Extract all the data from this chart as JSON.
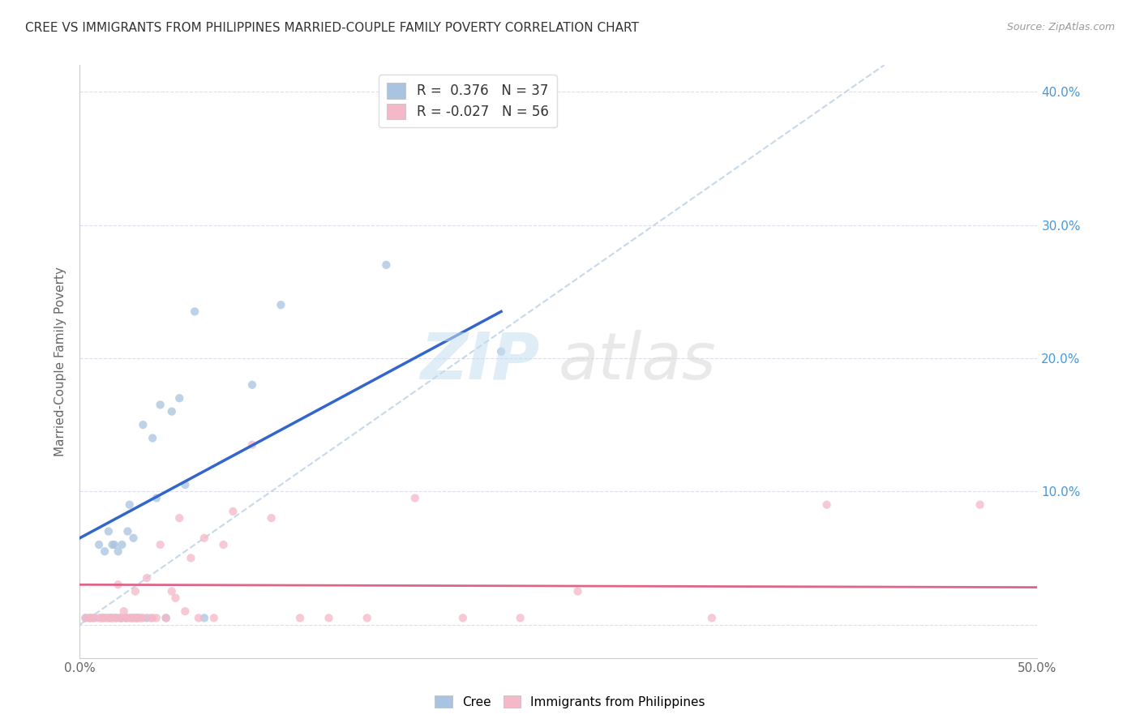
{
  "title": "CREE VS IMMIGRANTS FROM PHILIPPINES MARRIED-COUPLE FAMILY POVERTY CORRELATION CHART",
  "source": "Source: ZipAtlas.com",
  "ylabel": "Married-Couple Family Poverty",
  "xlim": [
    0.0,
    0.5
  ],
  "ylim": [
    -0.025,
    0.42
  ],
  "cree_color": "#a8c4e0",
  "philippines_color": "#f4b8c8",
  "cree_line_color": "#3366cc",
  "philippines_line_color": "#dd6688",
  "diagonal_color": "#c0d4e8",
  "watermark_zip": "ZIP",
  "watermark_atlas": "atlas",
  "cree_x": [
    0.003,
    0.005,
    0.007,
    0.01,
    0.012,
    0.013,
    0.015,
    0.016,
    0.017,
    0.018,
    0.019,
    0.02,
    0.021,
    0.022,
    0.022,
    0.024,
    0.025,
    0.026,
    0.027,
    0.028,
    0.029,
    0.03,
    0.033,
    0.035,
    0.038,
    0.04,
    0.042,
    0.045,
    0.048,
    0.052,
    0.055,
    0.06,
    0.065,
    0.09,
    0.105,
    0.16,
    0.22
  ],
  "cree_y": [
    0.005,
    0.005,
    0.005,
    0.06,
    0.005,
    0.055,
    0.07,
    0.005,
    0.06,
    0.06,
    0.005,
    0.055,
    0.005,
    0.005,
    0.06,
    0.005,
    0.07,
    0.09,
    0.005,
    0.065,
    0.005,
    0.005,
    0.15,
    0.005,
    0.14,
    0.095,
    0.165,
    0.005,
    0.16,
    0.17,
    0.105,
    0.235,
    0.005,
    0.18,
    0.24,
    0.27,
    0.205
  ],
  "phil_x": [
    0.003,
    0.005,
    0.006,
    0.008,
    0.01,
    0.011,
    0.012,
    0.013,
    0.014,
    0.015,
    0.016,
    0.017,
    0.018,
    0.019,
    0.02,
    0.021,
    0.022,
    0.023,
    0.024,
    0.025,
    0.026,
    0.027,
    0.028,
    0.029,
    0.03,
    0.031,
    0.032,
    0.033,
    0.035,
    0.037,
    0.038,
    0.04,
    0.042,
    0.045,
    0.048,
    0.05,
    0.052,
    0.055,
    0.058,
    0.062,
    0.065,
    0.07,
    0.075,
    0.08,
    0.09,
    0.1,
    0.115,
    0.13,
    0.15,
    0.175,
    0.2,
    0.23,
    0.26,
    0.33,
    0.39,
    0.47
  ],
  "phil_y": [
    0.005,
    0.005,
    0.005,
    0.005,
    0.005,
    0.005,
    0.005,
    0.005,
    0.005,
    0.005,
    0.005,
    0.005,
    0.005,
    0.005,
    0.03,
    0.005,
    0.005,
    0.01,
    0.005,
    0.005,
    0.005,
    0.005,
    0.005,
    0.025,
    0.005,
    0.005,
    0.005,
    0.005,
    0.035,
    0.005,
    0.005,
    0.005,
    0.06,
    0.005,
    0.025,
    0.02,
    0.08,
    0.01,
    0.05,
    0.005,
    0.065,
    0.005,
    0.06,
    0.085,
    0.135,
    0.08,
    0.005,
    0.005,
    0.005,
    0.095,
    0.005,
    0.005,
    0.025,
    0.005,
    0.09,
    0.09
  ],
  "marker_size": 55,
  "cree_line_x0": 0.0,
  "cree_line_y0": 0.065,
  "cree_line_x1": 0.22,
  "cree_line_y1": 0.235,
  "phil_line_x0": 0.0,
  "phil_line_y0": 0.03,
  "phil_line_x1": 0.5,
  "phil_line_y1": 0.028
}
